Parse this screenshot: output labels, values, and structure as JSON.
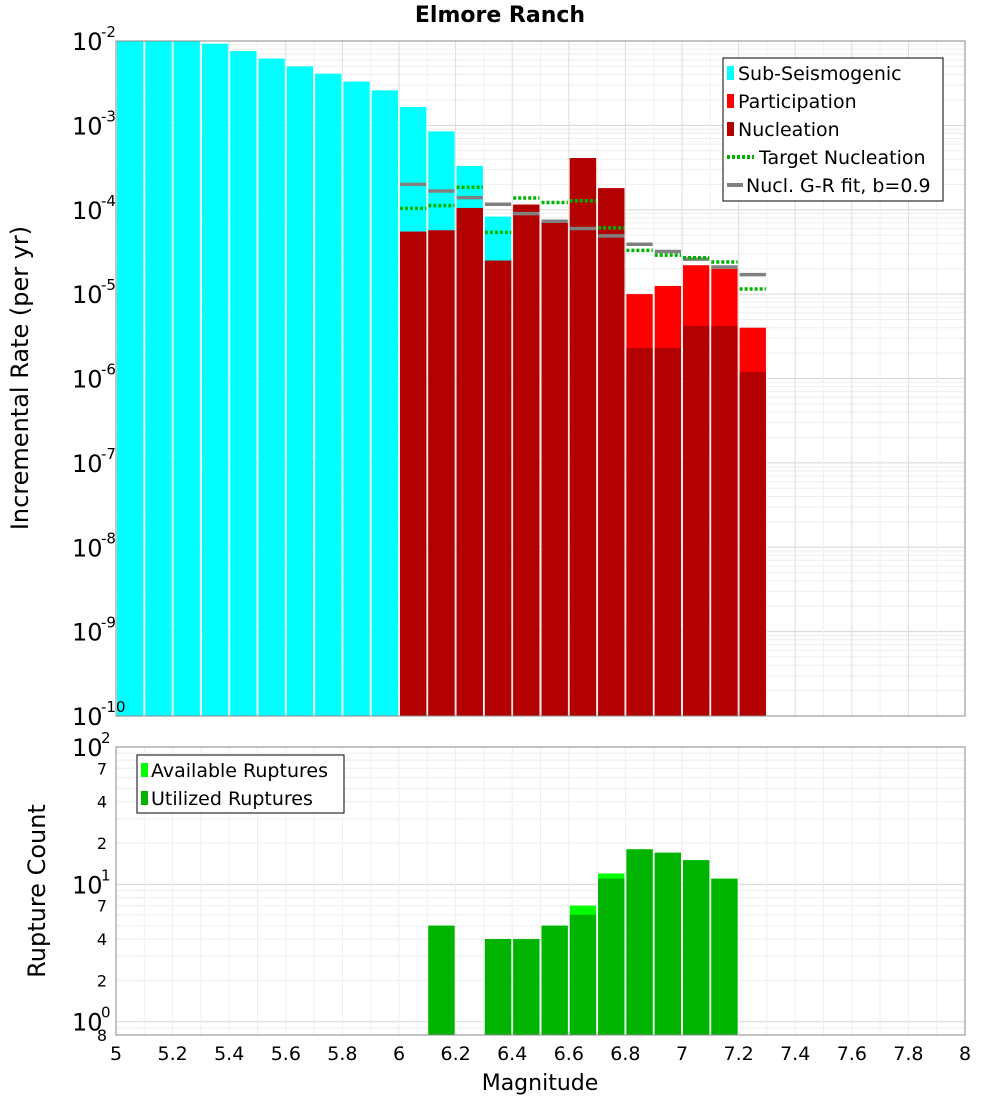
{
  "colors": {
    "sub_seismogenic": "#00ffff",
    "participation": "#ff0000",
    "nucleation": "#b30000",
    "target_nucleation": "#00b300",
    "gr_fit": "#808080",
    "available": "#00ff00",
    "utilized": "#00b300"
  },
  "chart_data": [
    {
      "type": "bar",
      "title": "Elmore Ranch",
      "ylabel": "Incremental Rate (per yr)",
      "xlabel": "",
      "yscale": "log",
      "xlim": [
        5,
        8
      ],
      "ylim": [
        1e-10,
        0.01
      ],
      "bin_width": 0.1,
      "grid": true,
      "legend_position": "top-right",
      "y_ticks": [
        {
          "base": "10",
          "exp": "-10",
          "value": 1e-10
        },
        {
          "base": "10",
          "exp": "-9",
          "value": 1e-09
        },
        {
          "base": "10",
          "exp": "-8",
          "value": 1e-08
        },
        {
          "base": "10",
          "exp": "-7",
          "value": 1e-07
        },
        {
          "base": "10",
          "exp": "-6",
          "value": 1e-06
        },
        {
          "base": "10",
          "exp": "-5",
          "value": 1e-05
        },
        {
          "base": "10",
          "exp": "-4",
          "value": 0.0001
        },
        {
          "base": "10",
          "exp": "-3",
          "value": 0.001
        },
        {
          "base": "10",
          "exp": "-2",
          "value": 0.01
        }
      ],
      "series": [
        {
          "name": "Sub-Seismogenic",
          "kind": "bar",
          "x": [
            5.05,
            5.15,
            5.25,
            5.35,
            5.45,
            5.55,
            5.65,
            5.75,
            5.85,
            5.95,
            6.05,
            6.15,
            6.25,
            6.35
          ],
          "values": [
            0.0104,
            0.0101,
            0.0099,
            0.0093,
            0.0076,
            0.0062,
            0.005,
            0.0041,
            0.0033,
            0.0026,
            0.00165,
            0.00085,
            0.00033,
            8.3e-05
          ]
        },
        {
          "name": "Participation",
          "kind": "bar",
          "x": [
            6.05,
            6.15,
            6.25,
            6.35,
            6.45,
            6.55,
            6.65,
            6.75,
            6.85,
            6.95,
            7.05,
            7.15,
            7.25
          ],
          "values": [
            5.5e-05,
            5.7e-05,
            0.000105,
            2.5e-05,
            0.000115,
            7e-05,
            0.00041,
            0.00018,
            1e-05,
            1.25e-05,
            2.2e-05,
            2e-05,
            4e-06
          ]
        },
        {
          "name": "Nucleation",
          "kind": "bar",
          "x": [
            6.05,
            6.15,
            6.25,
            6.35,
            6.45,
            6.55,
            6.65,
            6.75,
            6.85,
            6.95,
            7.05,
            7.15,
            7.25
          ],
          "values": [
            5.5e-05,
            5.7e-05,
            0.000105,
            2.5e-05,
            0.000115,
            7e-05,
            0.00041,
            0.00018,
            2.3e-06,
            2.3e-06,
            4.2e-06,
            4.2e-06,
            1.2e-06
          ]
        },
        {
          "name": "Target Nucleation",
          "kind": "dotted-step",
          "x": [
            6.05,
            6.15,
            6.25,
            6.35,
            6.45,
            6.55,
            6.65,
            6.75,
            6.85,
            6.95,
            7.05,
            7.15,
            7.25
          ],
          "values": [
            0.000104,
            0.000112,
            0.000185,
            5.4e-05,
            0.000138,
            0.000122,
            0.000128,
            6.1e-05,
            3.3e-05,
            2.9e-05,
            2.7e-05,
            2.4e-05,
            1.15e-05
          ]
        },
        {
          "name": "Nucl. G-R fit, b=0.9",
          "kind": "step",
          "x": [
            6.05,
            6.15,
            6.25,
            6.35,
            6.45,
            6.55,
            6.65,
            6.75,
            6.85,
            6.95,
            7.05,
            7.15,
            7.25
          ],
          "values": [
            0.0002,
            0.000167,
            0.000139,
            0.000116,
            9e-05,
            7.3e-05,
            6e-05,
            4.9e-05,
            3.9e-05,
            3.2e-05,
            2.6e-05,
            2.1e-05,
            1.7e-05
          ]
        }
      ]
    },
    {
      "type": "bar",
      "title": "",
      "ylabel": "Rupture Count",
      "xlabel": "Magnitude",
      "yscale": "log",
      "xlim": [
        5,
        8
      ],
      "ylim": [
        1,
        100
      ],
      "bin_width": 0.1,
      "grid": true,
      "legend_position": "top-left",
      "x_ticks": [
        "5",
        "5.2",
        "5.4",
        "5.6",
        "5.8",
        "6",
        "6.2",
        "6.4",
        "6.6",
        "6.8",
        "7",
        "7.2",
        "7.4",
        "7.6",
        "7.8",
        "8"
      ],
      "y_major_ticks": [
        {
          "base": "10",
          "exp": "0",
          "value": 1
        },
        {
          "base": "10",
          "exp": "1",
          "value": 10
        },
        {
          "base": "10",
          "exp": "2",
          "value": 100
        }
      ],
      "y_minor_ticks": [
        {
          "label": "8",
          "value": 0.8
        },
        {
          "label": "2",
          "value": 2
        },
        {
          "label": "4",
          "value": 4
        },
        {
          "label": "7",
          "value": 7
        },
        {
          "label": "2",
          "value": 20
        },
        {
          "label": "4",
          "value": 40
        },
        {
          "label": "7",
          "value": 70
        }
      ],
      "series": [
        {
          "name": "Available Ruptures",
          "x": [
            6.15,
            6.35,
            6.45,
            6.55,
            6.65,
            6.75,
            6.85,
            6.95,
            7.05,
            7.15
          ],
          "values": [
            5,
            4,
            4,
            5,
            7,
            12,
            18,
            17,
            15,
            11
          ]
        },
        {
          "name": "Utilized Ruptures",
          "x": [
            6.15,
            6.35,
            6.45,
            6.55,
            6.65,
            6.75,
            6.85,
            6.95,
            7.05,
            7.15
          ],
          "values": [
            5,
            4,
            4,
            5,
            6,
            11,
            18,
            17,
            15,
            11
          ]
        }
      ]
    }
  ]
}
